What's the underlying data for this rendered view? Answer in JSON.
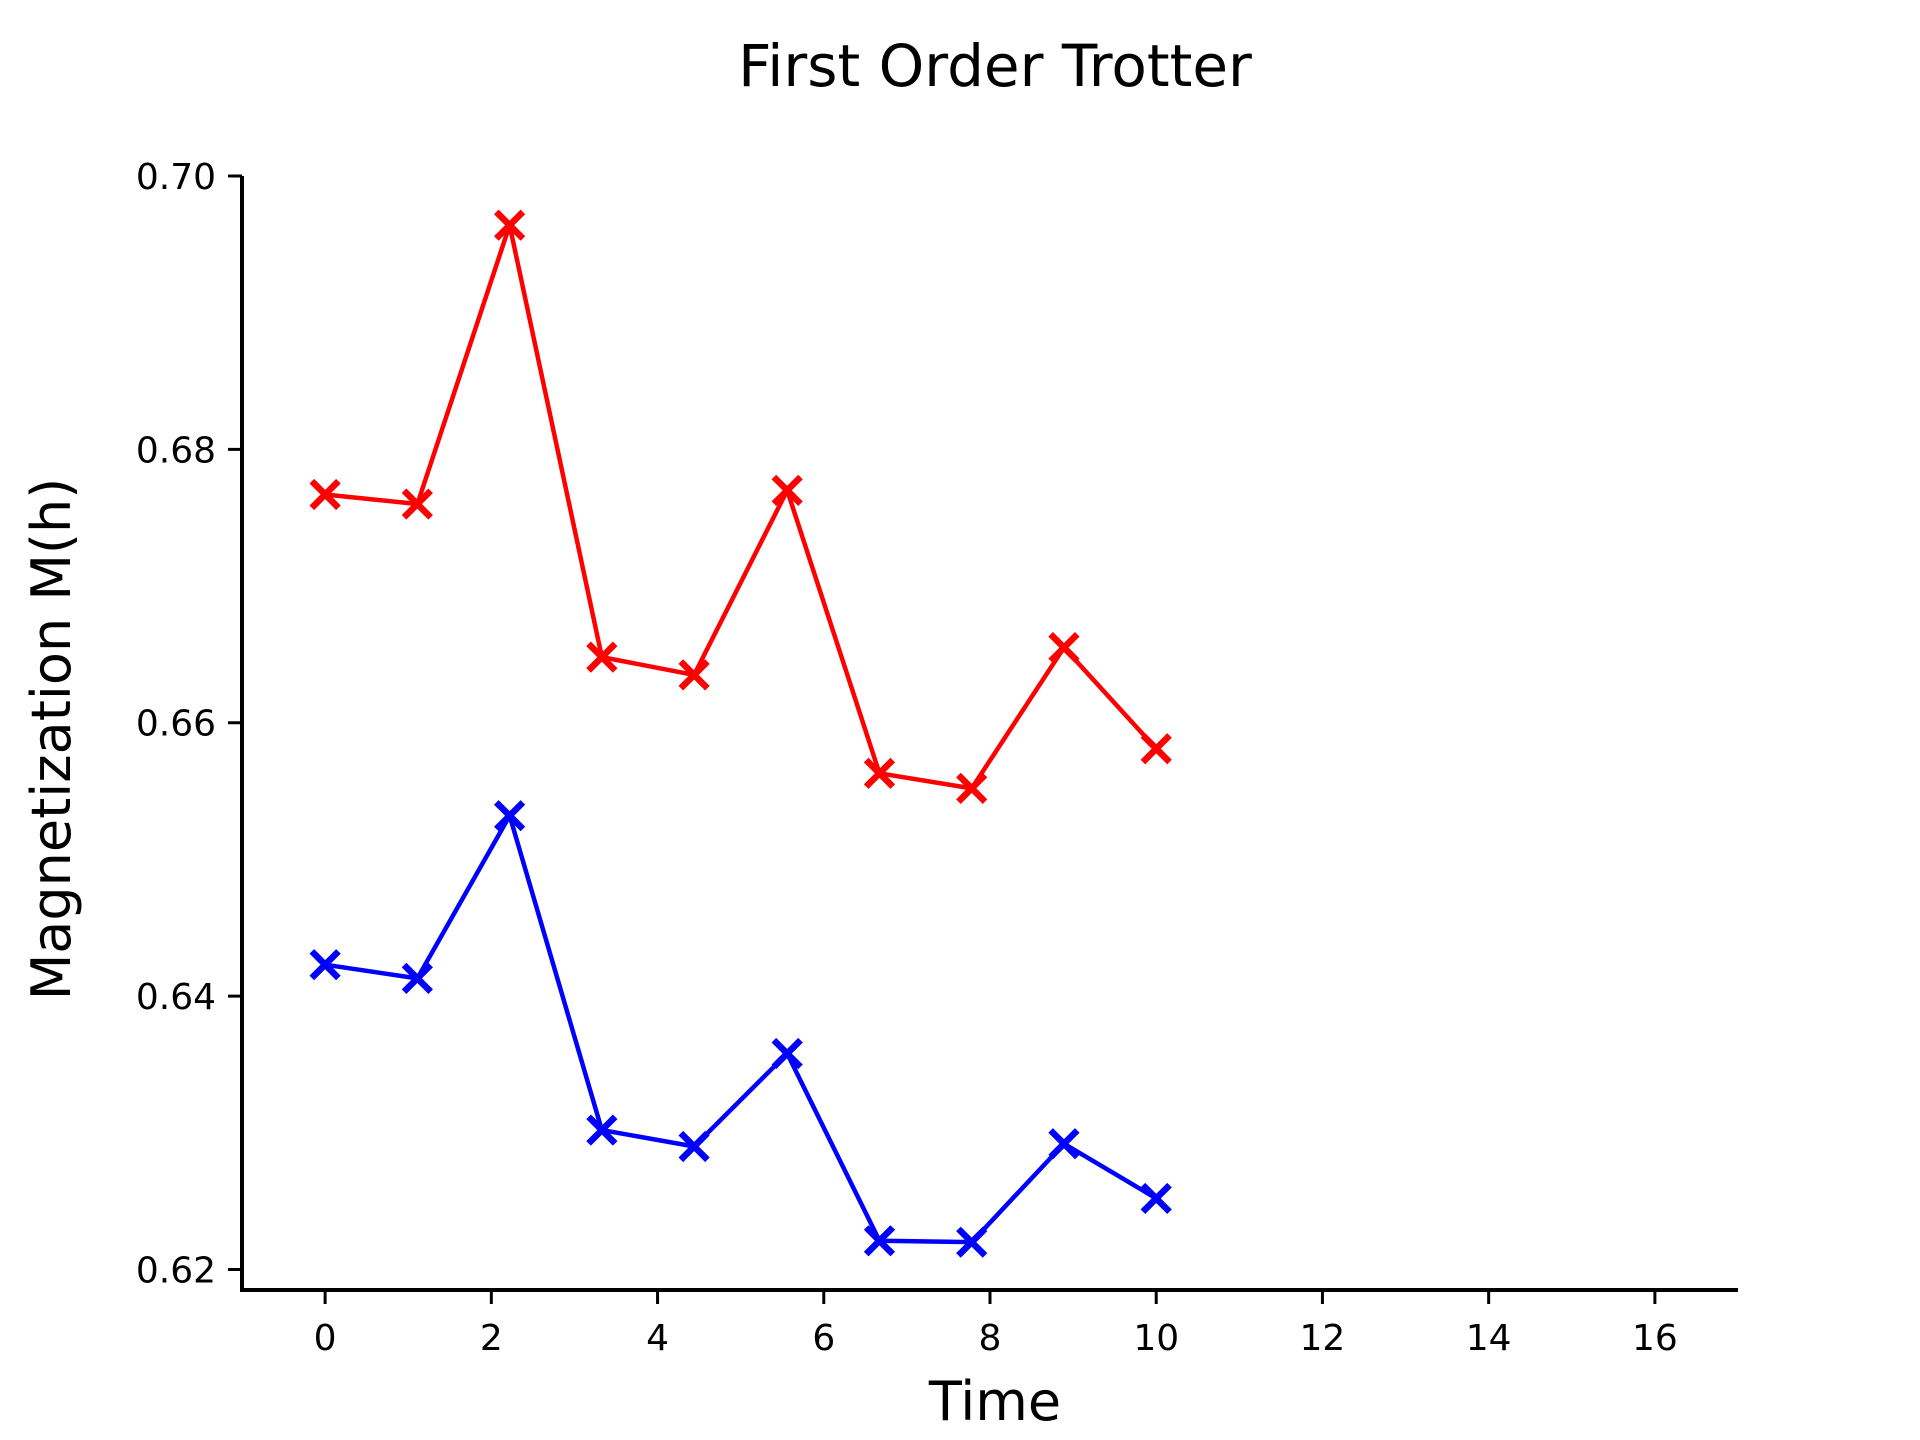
{
  "chart_data": {
    "type": "line",
    "title": "First Order Trotter",
    "xlabel": "Time",
    "ylabel": "Magnetization M(h)",
    "xlim": [
      -1,
      17
    ],
    "ylim": [
      0.6185,
      0.7
    ],
    "xticks": [
      0,
      2,
      4,
      6,
      8,
      10,
      12,
      14,
      16
    ],
    "yticks": [
      0.62,
      0.64,
      0.66,
      0.68,
      0.7
    ],
    "ytick_labels": [
      "0.62",
      "0.64",
      "0.66",
      "0.68",
      "0.70"
    ],
    "grid": false,
    "legend": "none",
    "x": [
      0,
      1.11,
      2.22,
      3.33,
      4.44,
      5.56,
      6.67,
      7.78,
      8.89,
      10
    ],
    "series": [
      {
        "color": "#ff0000",
        "marker": "X",
        "values": [
          0.6767,
          0.676,
          0.6964,
          0.6648,
          0.6635,
          0.677,
          0.6563,
          0.6552,
          0.6655,
          0.6581
        ]
      },
      {
        "color": "#0000ff",
        "marker": "X",
        "values": [
          0.6423,
          0.6413,
          0.6532,
          0.6302,
          0.629,
          0.6358,
          0.6221,
          0.622,
          0.6292,
          0.6252
        ]
      }
    ]
  }
}
